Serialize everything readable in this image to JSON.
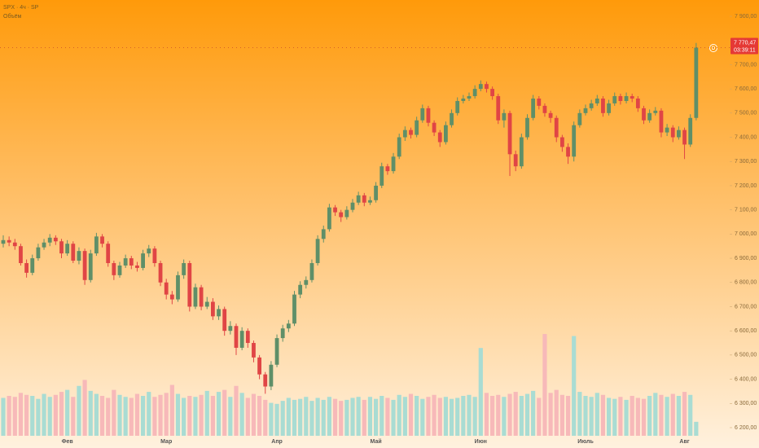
{
  "chart_data": {
    "type": "candlestick",
    "title": "SPX · 4ч · SP",
    "volume_title": "Объём",
    "last_price_label": "7 770,47",
    "countdown": "03:39:11",
    "up_color": "#5f8f68",
    "down_color": "#e04545",
    "volume_up_color": "#a9dcd3",
    "volume_down_color": "#f7b9b9",
    "ylim": [
      6200,
      7900
    ],
    "yticks": [
      {
        "value": 6200,
        "label": "6 200,00"
      },
      {
        "value": 6300,
        "label": "6 300,00"
      },
      {
        "value": 6400,
        "label": "6 400,00"
      },
      {
        "value": 6500,
        "label": "6 500,00"
      },
      {
        "value": 6600,
        "label": "6 600,00"
      },
      {
        "value": 6700,
        "label": "6 700,00"
      },
      {
        "value": 6800,
        "label": "6 800,00"
      },
      {
        "value": 6900,
        "label": "6 900,00"
      },
      {
        "value": 7000,
        "label": "7 000,00"
      },
      {
        "value": 7100,
        "label": "7 100,00"
      },
      {
        "value": 7200,
        "label": "7 200,00"
      },
      {
        "value": 7300,
        "label": "7 300,00"
      },
      {
        "value": 7400,
        "label": "7 400,00"
      },
      {
        "value": 7500,
        "label": "7 500,00"
      },
      {
        "value": 7600,
        "label": "7 600,00"
      },
      {
        "value": 7700,
        "label": "7 700,00"
      },
      {
        "value": 7800,
        "label": "7 800,00"
      },
      {
        "value": 7900,
        "label": "7 900,00"
      }
    ],
    "volume_ylim": [
      0,
      12
    ],
    "categories": [
      null,
      null,
      null,
      null,
      null,
      null,
      null,
      null,
      null,
      null,
      null,
      "Фев",
      null,
      null,
      null,
      null,
      null,
      null,
      null,
      null,
      null,
      null,
      null,
      null,
      null,
      null,
      null,
      null,
      "Мар",
      null,
      null,
      null,
      null,
      null,
      null,
      null,
      null,
      null,
      null,
      null,
      null,
      null,
      null,
      null,
      null,
      null,
      null,
      "Апр",
      null,
      null,
      null,
      null,
      null,
      null,
      null,
      null,
      null,
      null,
      null,
      null,
      null,
      null,
      null,
      null,
      "Май",
      null,
      null,
      null,
      null,
      null,
      null,
      null,
      null,
      null,
      null,
      null,
      null,
      null,
      null,
      null,
      null,
      null,
      "Июн",
      null,
      null,
      null,
      null,
      null,
      null,
      null,
      null,
      null,
      null,
      null,
      null,
      null,
      null,
      null,
      null,
      null,
      "Июль",
      null,
      null,
      null,
      null,
      null,
      null,
      null,
      null,
      null,
      null,
      null,
      null,
      null,
      null,
      null,
      null,
      "Авг",
      null,
      null
    ],
    "open": [
      6960,
      6975,
      6965,
      6950,
      6880,
      6840,
      6900,
      6945,
      6965,
      6985,
      6970,
      6920,
      6960,
      6890,
      6930,
      6810,
      6920,
      6990,
      6960,
      6880,
      6830,
      6870,
      6900,
      6870,
      6860,
      6920,
      6940,
      6880,
      6800,
      6750,
      6730,
      6830,
      6880,
      6700,
      6780,
      6700,
      6720,
      6660,
      6690,
      6600,
      6620,
      6530,
      6600,
      6550,
      6490,
      6420,
      6370,
      6460,
      6570,
      6610,
      6630,
      6750,
      6790,
      6810,
      6880,
      6980,
      7020,
      7110,
      7090,
      7070,
      7100,
      7130,
      7160,
      7130,
      7140,
      7200,
      7280,
      7260,
      7320,
      7400,
      7430,
      7410,
      7470,
      7520,
      7460,
      7420,
      7380,
      7450,
      7500,
      7550,
      7560,
      7570,
      7600,
      7620,
      7600,
      7570,
      7470,
      7500,
      7330,
      7280,
      7400,
      7480,
      7560,
      7530,
      7500,
      7480,
      7400,
      7360,
      7320,
      7450,
      7500,
      7520,
      7540,
      7560,
      7500,
      7540,
      7570,
      7550,
      7570,
      7560,
      7520,
      7470,
      7500,
      7510,
      7420,
      7440,
      7400,
      7430,
      7370,
      7480
    ],
    "high": [
      6995,
      6990,
      6980,
      6960,
      6895,
      6915,
      6960,
      6980,
      7000,
      6995,
      6980,
      6975,
      6970,
      6945,
      6940,
      6935,
      7005,
      7000,
      6970,
      6890,
      6885,
      6915,
      6910,
      6885,
      6935,
      6955,
      6950,
      6890,
      6815,
      6765,
      6845,
      6895,
      6890,
      6795,
      6790,
      6740,
      6735,
      6705,
      6700,
      6640,
      6630,
      6615,
      6610,
      6560,
      6500,
      6430,
      6475,
      6585,
      6625,
      6645,
      6765,
      6805,
      6825,
      6895,
      6995,
      7035,
      7125,
      7120,
      7100,
      7115,
      7145,
      7175,
      7170,
      7155,
      7215,
      7295,
      7290,
      7335,
      7415,
      7445,
      7440,
      7485,
      7535,
      7530,
      7470,
      7430,
      7465,
      7515,
      7565,
      7575,
      7585,
      7615,
      7635,
      7630,
      7610,
      7580,
      7515,
      7510,
      7345,
      7415,
      7495,
      7575,
      7570,
      7540,
      7510,
      7490,
      7410,
      7375,
      7465,
      7515,
      7535,
      7555,
      7575,
      7570,
      7555,
      7585,
      7580,
      7585,
      7580,
      7570,
      7530,
      7515,
      7525,
      7520,
      7455,
      7450,
      7445,
      7440,
      7495,
      7790
    ],
    "low": [
      6945,
      6950,
      6935,
      6870,
      6820,
      6830,
      6890,
      6935,
      6950,
      6955,
      6900,
      6910,
      6880,
      6875,
      6790,
      6800,
      6910,
      6945,
      6865,
      6810,
      6820,
      6860,
      6855,
      6845,
      6850,
      6905,
      6865,
      6785,
      6730,
      6710,
      6720,
      6815,
      6680,
      6690,
      6685,
      6690,
      6645,
      6645,
      6580,
      6585,
      6500,
      6520,
      6530,
      6470,
      6400,
      6340,
      6355,
      6450,
      6555,
      6595,
      6620,
      6735,
      6775,
      6800,
      6870,
      6965,
      7010,
      7075,
      7050,
      7060,
      7090,
      7120,
      7115,
      7120,
      7130,
      7190,
      7245,
      7250,
      7310,
      7385,
      7395,
      7400,
      7460,
      7445,
      7405,
      7360,
      7370,
      7440,
      7490,
      7540,
      7550,
      7560,
      7590,
      7585,
      7555,
      7455,
      7440,
      7240,
      7260,
      7270,
      7390,
      7470,
      7515,
      7485,
      7460,
      7380,
      7340,
      7290,
      7300,
      7440,
      7490,
      7510,
      7530,
      7485,
      7490,
      7530,
      7535,
      7540,
      7545,
      7505,
      7455,
      7460,
      7490,
      7400,
      7405,
      7380,
      7390,
      7310,
      7360,
      7470
    ],
    "close": [
      6975,
      6965,
      6950,
      6880,
      6840,
      6900,
      6945,
      6965,
      6985,
      6970,
      6920,
      6960,
      6890,
      6930,
      6810,
      6920,
      6990,
      6960,
      6880,
      6830,
      6870,
      6900,
      6870,
      6860,
      6920,
      6940,
      6880,
      6800,
      6750,
      6730,
      6830,
      6880,
      6700,
      6780,
      6700,
      6720,
      6660,
      6690,
      6600,
      6620,
      6530,
      6600,
      6550,
      6490,
      6420,
      6370,
      6460,
      6570,
      6610,
      6630,
      6750,
      6790,
      6810,
      6880,
      6980,
      7020,
      7110,
      7090,
      7070,
      7100,
      7130,
      7160,
      7130,
      7140,
      7200,
      7280,
      7260,
      7320,
      7400,
      7430,
      7410,
      7470,
      7520,
      7460,
      7420,
      7380,
      7450,
      7500,
      7550,
      7560,
      7570,
      7600,
      7620,
      7600,
      7570,
      7470,
      7500,
      7330,
      7280,
      7400,
      7480,
      7560,
      7530,
      7500,
      7480,
      7400,
      7360,
      7320,
      7450,
      7500,
      7520,
      7540,
      7560,
      7500,
      7540,
      7570,
      7550,
      7570,
      7560,
      7520,
      7470,
      7500,
      7510,
      7420,
      7440,
      7400,
      7430,
      7370,
      7480,
      7770.47
    ],
    "volume": [
      3.8,
      4.0,
      3.9,
      4.3,
      4.1,
      4.0,
      3.7,
      4.2,
      3.9,
      4.1,
      4.4,
      4.6,
      3.9,
      5.0,
      5.6,
      4.5,
      4.2,
      4.0,
      3.8,
      4.6,
      4.1,
      3.9,
      3.8,
      4.2,
      4.0,
      4.4,
      3.9,
      4.1,
      4.3,
      5.1,
      4.2,
      3.8,
      4.0,
      3.9,
      4.1,
      4.5,
      4.0,
      4.4,
      4.6,
      3.9,
      5.0,
      4.3,
      3.8,
      4.2,
      4.0,
      3.6,
      3.3,
      3.2,
      3.5,
      3.8,
      3.6,
      3.7,
      3.9,
      3.5,
      3.8,
      3.6,
      3.9,
      3.7,
      3.5,
      3.6,
      3.8,
      3.9,
      3.6,
      3.9,
      3.7,
      4.0,
      3.8,
      3.6,
      4.1,
      3.9,
      4.2,
      4.0,
      3.7,
      3.9,
      4.1,
      3.8,
      3.9,
      3.7,
      3.8,
      4.0,
      4.1,
      3.9,
      8.8,
      4.3,
      4.0,
      4.1,
      3.9,
      4.2,
      4.4,
      4.0,
      4.2,
      4.5,
      3.8,
      10.2,
      4.3,
      4.6,
      4.1,
      4.0,
      10.0,
      4.4,
      4.0,
      3.9,
      4.3,
      4.1,
      3.8,
      3.7,
      3.9,
      3.6,
      4.0,
      3.8,
      3.7,
      4.0,
      4.3,
      4.1,
      3.9,
      4.2,
      4.0,
      4.4,
      4.1,
      1.4
    ]
  }
}
